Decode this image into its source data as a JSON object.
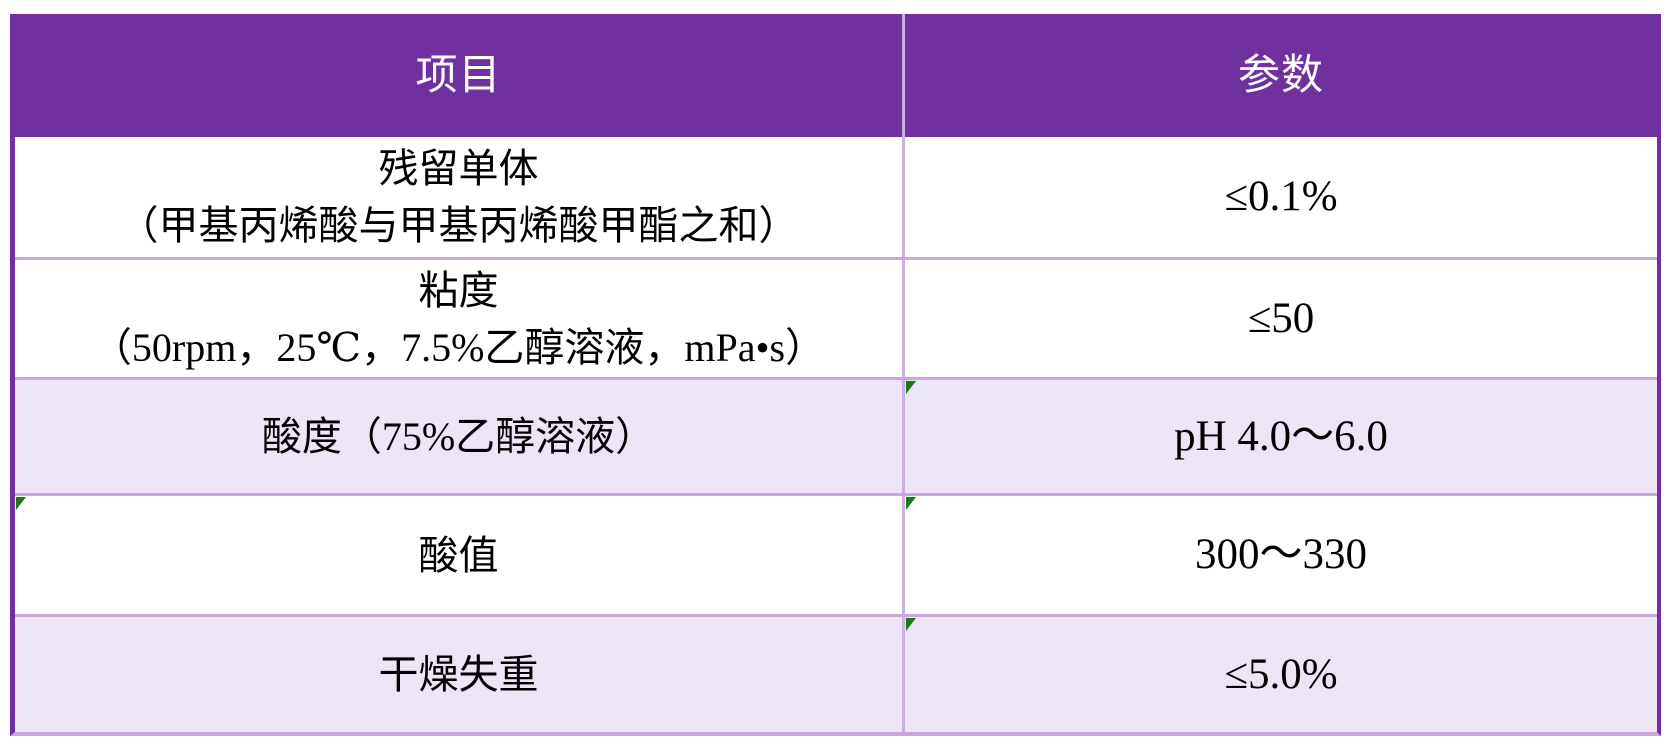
{
  "table": {
    "header": {
      "item": "项目",
      "param": "参数"
    },
    "rows": [
      {
        "item_line1": "残留单体",
        "item_line2": "（甲基丙烯酸与甲基丙烯酸甲酯之和）",
        "value": "≤0.1%"
      },
      {
        "item_line1": "粘度",
        "item_line2": "（50rpm，25℃，7.5%乙醇溶液，mPa•s）",
        "value": "≤50"
      },
      {
        "item_line1": "酸度（75%乙醇溶液）",
        "value": "pH 4.0～6.0"
      },
      {
        "item_line1": "酸值",
        "value": "300～330"
      },
      {
        "item_line1": "干燥失重",
        "value": "≤5.0%"
      }
    ]
  },
  "colors": {
    "header_bg": "#7030A0",
    "header_text": "#FFFFFF",
    "outer_border": "#7030A0",
    "grid_line": "#C9A6DC",
    "column_divider": "#CBB0E2",
    "alt_row_bg": "#EDE4F6",
    "cell_text": "#000000",
    "flag_marker": "#1A7A1A"
  }
}
